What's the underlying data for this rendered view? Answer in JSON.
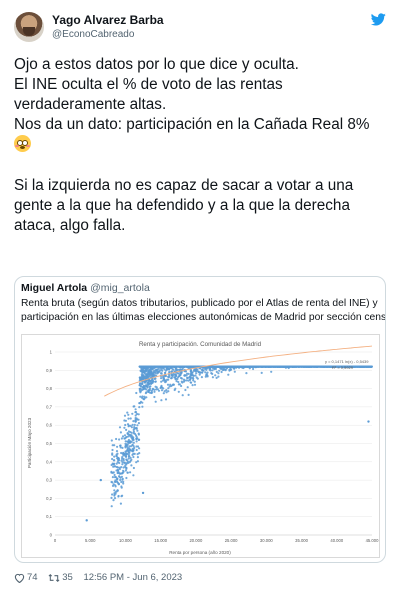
{
  "author": {
    "display_name": "Yago Alvarez Barba",
    "handle": "@EconoCabreado"
  },
  "tweet_lines": [
    "Ojo a estos datos por lo que dice y oculta.",
    "El INE oculta el % de voto de las rentas",
    "verdaderamente altas.",
    "Nos da un dato: participación en la Cañada Real 8%"
  ],
  "tweet_lines_2": [
    "Si la izquierda no es capaz de sacar a votar a una",
    "gente a la que ha defendido y a la que la derecha",
    "ataca, algo falla."
  ],
  "quoted": {
    "display_name": "Miguel Artola",
    "handle": "@mig_artola",
    "text_lines": [
      "Renta bruta (según datos tributarios, publicado por el Atlas de renta del INE) y",
      "participación en las últimas elecciones autonómicas de Madrid por sección censal"
    ]
  },
  "chart_data": {
    "type": "scatter",
    "title": "Renta y participación. Comunidad de Madrid",
    "xlabel": "Renta por persona (año 2020)",
    "ylabel": "Participación Mayo 2023",
    "xlim": [
      0,
      45000
    ],
    "ylim": [
      0,
      1
    ],
    "x_ticks": [
      "0",
      "5.000",
      "10.000",
      "15.000",
      "20.000",
      "25.000",
      "30.000",
      "35.000",
      "40.000",
      "45.000"
    ],
    "y_ticks": [
      "0",
      "0,1",
      "0,2",
      "0,3",
      "0,4",
      "0,5",
      "0,6",
      "0,7",
      "0,8",
      "0,9",
      "1"
    ],
    "equation": "y = 0,1471 ln(x) - 0,5439",
    "r_squared": "R² = 0,5929",
    "trendline": {
      "a": 0.1471,
      "b": -0.5439
    },
    "point_color": "#5b9bd5",
    "trend_color": "#f4b183",
    "notable_points": [
      {
        "x": 4500,
        "y": 0.08
      },
      {
        "x": 6500,
        "y": 0.3
      },
      {
        "x": 12500,
        "y": 0.23
      },
      {
        "x": 18000,
        "y": 0.9
      },
      {
        "x": 44500,
        "y": 0.62
      }
    ]
  },
  "footer": {
    "likes": "74",
    "retweets": "35",
    "timestamp": "12:56 PM - Jun 6, 2023"
  },
  "colors": {
    "brand_blue": "#1d9bf0",
    "secondary_text": "#536471",
    "border": "#cfd9de"
  },
  "icons": [
    "twitter-bird-icon",
    "heart-icon",
    "retweet-icon"
  ]
}
